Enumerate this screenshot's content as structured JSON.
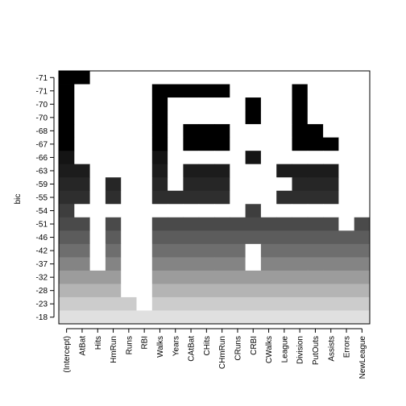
{
  "chart_data": {
    "type": "heatmap",
    "title": "",
    "xlabel": "",
    "ylabel": "bic",
    "x": [
      "(Intercept)",
      "AtBat",
      "Hits",
      "HmRun",
      "Runs",
      "RBI",
      "Walks",
      "Years",
      "CAtBat",
      "CHits",
      "CHmRun",
      "CRuns",
      "CRBI",
      "CWalks",
      "League",
      "Division",
      "PutOuts",
      "Assists",
      "Errors",
      "NewLeague"
    ],
    "y": [
      "-71",
      "-71",
      "-70",
      "-70",
      "-68",
      "-67",
      "-66",
      "-63",
      "-59",
      "-55",
      "-54",
      "-51",
      "-46",
      "-42",
      "-37",
      "-32",
      "-28",
      "-23",
      "-18"
    ],
    "row_shades": [
      "#000000",
      "#000000",
      "#000000",
      "#000000",
      "#000000",
      "#000000",
      "#141414",
      "#1c1c1c",
      "#262626",
      "#2e2e2e",
      "#3e3e3e",
      "#4a4a4a",
      "#5c5c5c",
      "#6e6e6e",
      "#848484",
      "#9c9c9c",
      "#b4b4b4",
      "#cccccc",
      "#e0e0e0"
    ],
    "cells": [
      [
        1,
        1,
        0,
        0,
        0,
        0,
        0,
        0,
        0,
        0,
        0,
        0,
        0,
        0,
        0,
        0,
        0,
        0,
        0,
        0
      ],
      [
        1,
        0,
        0,
        0,
        0,
        0,
        1,
        1,
        1,
        1,
        1,
        0,
        0,
        0,
        0,
        1,
        0,
        0,
        0,
        0
      ],
      [
        1,
        0,
        0,
        0,
        0,
        0,
        1,
        0,
        0,
        0,
        0,
        0,
        1,
        0,
        0,
        1,
        0,
        0,
        0,
        0
      ],
      [
        1,
        0,
        0,
        0,
        0,
        0,
        1,
        0,
        0,
        0,
        0,
        0,
        1,
        0,
        0,
        1,
        0,
        0,
        0,
        0
      ],
      [
        1,
        0,
        0,
        0,
        0,
        0,
        1,
        0,
        1,
        1,
        1,
        0,
        0,
        0,
        0,
        1,
        1,
        0,
        0,
        0
      ],
      [
        1,
        0,
        0,
        0,
        0,
        0,
        1,
        0,
        1,
        1,
        1,
        0,
        0,
        0,
        0,
        1,
        1,
        1,
        0,
        0
      ],
      [
        1,
        0,
        0,
        0,
        0,
        0,
        1,
        0,
        0,
        0,
        0,
        0,
        1,
        0,
        0,
        0,
        0,
        0,
        0,
        0
      ],
      [
        1,
        1,
        0,
        0,
        0,
        0,
        1,
        0,
        1,
        1,
        1,
        0,
        0,
        0,
        1,
        1,
        1,
        1,
        0,
        0
      ],
      [
        1,
        1,
        0,
        1,
        0,
        0,
        1,
        0,
        1,
        1,
        1,
        0,
        0,
        0,
        0,
        1,
        1,
        1,
        0,
        0
      ],
      [
        1,
        1,
        0,
        1,
        0,
        0,
        1,
        1,
        1,
        1,
        1,
        0,
        0,
        0,
        1,
        1,
        1,
        1,
        0,
        0
      ],
      [
        1,
        0,
        0,
        0,
        0,
        0,
        0,
        0,
        0,
        0,
        0,
        0,
        1,
        0,
        0,
        0,
        0,
        0,
        0,
        0
      ],
      [
        1,
        1,
        0,
        1,
        0,
        0,
        1,
        1,
        1,
        1,
        1,
        1,
        1,
        1,
        1,
        1,
        1,
        1,
        0,
        1
      ],
      [
        1,
        1,
        0,
        1,
        0,
        0,
        1,
        1,
        1,
        1,
        1,
        1,
        1,
        1,
        1,
        1,
        1,
        1,
        1,
        1
      ],
      [
        1,
        1,
        0,
        1,
        0,
        0,
        1,
        1,
        1,
        1,
        1,
        1,
        0,
        1,
        1,
        1,
        1,
        1,
        1,
        1
      ],
      [
        1,
        1,
        0,
        1,
        0,
        0,
        1,
        1,
        1,
        1,
        1,
        1,
        0,
        1,
        1,
        1,
        1,
        1,
        1,
        1
      ],
      [
        1,
        1,
        1,
        1,
        0,
        0,
        1,
        1,
        1,
        1,
        1,
        1,
        1,
        1,
        1,
        1,
        1,
        1,
        1,
        1
      ],
      [
        1,
        1,
        1,
        1,
        0,
        0,
        1,
        1,
        1,
        1,
        1,
        1,
        1,
        1,
        1,
        1,
        1,
        1,
        1,
        1
      ],
      [
        1,
        1,
        1,
        1,
        1,
        0,
        1,
        1,
        1,
        1,
        1,
        1,
        1,
        1,
        1,
        1,
        1,
        1,
        1,
        1
      ],
      [
        1,
        1,
        1,
        1,
        1,
        1,
        1,
        1,
        1,
        1,
        1,
        1,
        1,
        1,
        1,
        1,
        1,
        1,
        1,
        1
      ]
    ]
  }
}
